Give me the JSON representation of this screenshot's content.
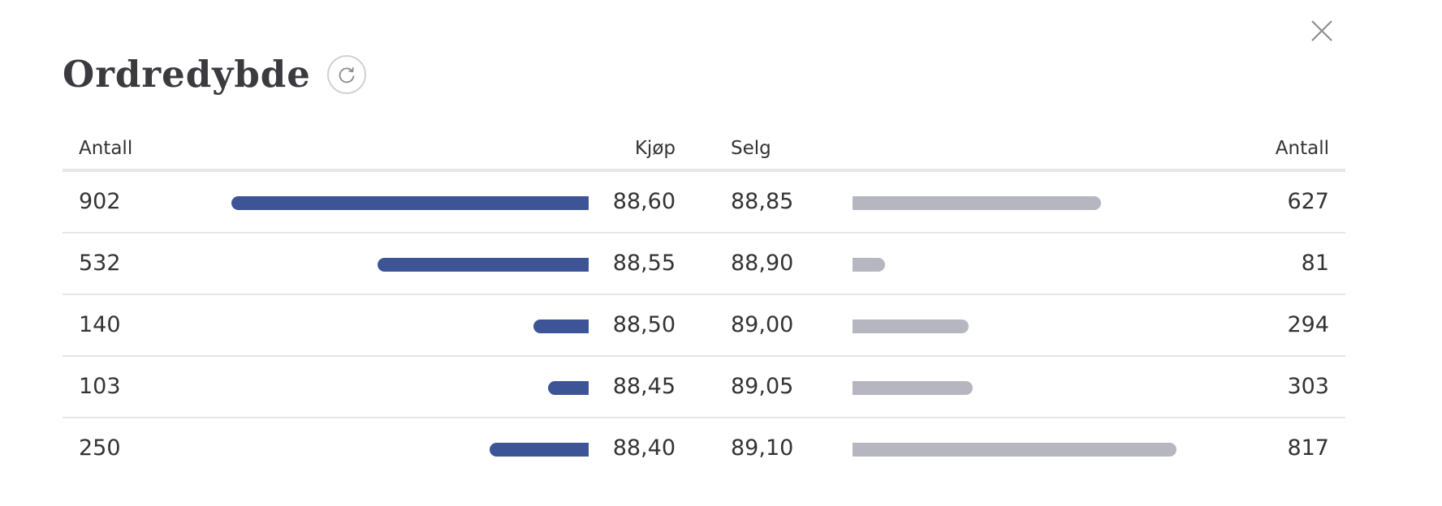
{
  "header": {
    "title": "Ordredybde"
  },
  "columns": {
    "buy_qty": "Antall",
    "buy_price": "Kjøp",
    "sell_price": "Selg",
    "sell_qty": "Antall"
  },
  "rows": [
    {
      "buy_qty": "902",
      "buy_price": "88,60",
      "sell_price": "88,85",
      "sell_qty": "627"
    },
    {
      "buy_qty": "532",
      "buy_price": "88,55",
      "sell_price": "88,90",
      "sell_qty": "81"
    },
    {
      "buy_qty": "140",
      "buy_price": "88,50",
      "sell_price": "89,00",
      "sell_qty": "294"
    },
    {
      "buy_qty": "103",
      "buy_price": "88,45",
      "sell_price": "89,05",
      "sell_qty": "303"
    },
    {
      "buy_qty": "250",
      "buy_price": "88,40",
      "sell_price": "89,10",
      "sell_qty": "817"
    }
  ],
  "colors": {
    "buy_bar": "#3d5596",
    "sell_bar": "#b6b6c0"
  },
  "icons": {
    "close": "close-icon",
    "refresh": "refresh-icon"
  }
}
